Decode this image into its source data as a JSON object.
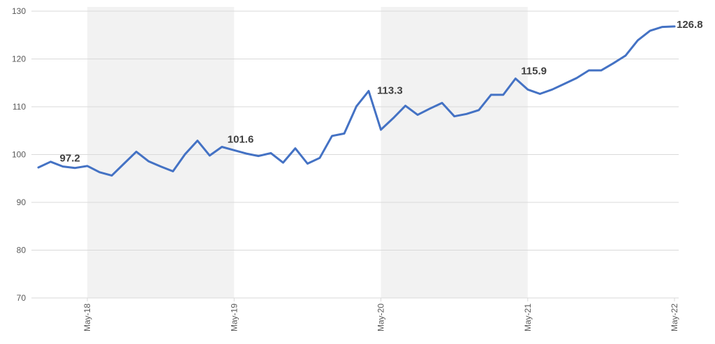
{
  "chart_data": {
    "type": "line",
    "title": "",
    "xlabel": "",
    "ylabel": "",
    "ylim": [
      70,
      130
    ],
    "yticks": [
      70,
      80,
      90,
      100,
      110,
      120,
      130
    ],
    "grid": true,
    "legend": "none",
    "line_color": "#4472C4",
    "band_color": "#F2F2F2",
    "x_tick_labels": [
      "May-18",
      "May-19",
      "May-20",
      "May-21",
      "May-22"
    ],
    "shaded_periods": [
      {
        "from": "May-18",
        "to": "May-19"
      },
      {
        "from": "May-20",
        "to": "May-21"
      }
    ],
    "series": [
      {
        "x": [
          "Jan-18",
          "Feb-18",
          "Mar-18",
          "Apr-18",
          "May-18",
          "Jun-18",
          "Jul-18",
          "Aug-18",
          "Sep-18",
          "Oct-18",
          "Nov-18",
          "Dec-18",
          "Jan-19",
          "Feb-19",
          "Mar-19",
          "Apr-19",
          "May-19",
          "Jun-19",
          "Jul-19",
          "Aug-19",
          "Sep-19",
          "Oct-19",
          "Nov-19",
          "Dec-19",
          "Jan-20",
          "Feb-20",
          "Mar-20",
          "Apr-20",
          "May-20",
          "Jun-20",
          "Jul-20",
          "Aug-20",
          "Sep-20",
          "Oct-20",
          "Nov-20",
          "Dec-20",
          "Jan-21",
          "Feb-21",
          "Mar-21",
          "Apr-21",
          "May-21",
          "Jun-21",
          "Jul-21",
          "Aug-21",
          "Sep-21",
          "Oct-21",
          "Nov-21",
          "Dec-21",
          "Jan-22",
          "Feb-22",
          "Mar-22",
          "Apr-22",
          "May-22"
        ],
        "values": [
          97.3,
          98.5,
          97.5,
          97.2,
          97.6,
          96.3,
          95.6,
          98.1,
          100.6,
          98.6,
          97.5,
          96.5,
          100.1,
          102.9,
          99.8,
          101.6,
          100.9,
          100.2,
          99.7,
          100.3,
          98.3,
          101.3,
          98.1,
          99.3,
          103.9,
          104.4,
          110.1,
          113.3,
          105.2,
          107.6,
          110.2,
          108.3,
          109.6,
          110.8,
          108.0,
          108.5,
          109.3,
          112.5,
          112.5,
          115.9,
          113.6,
          112.7,
          113.6,
          114.8,
          116.0,
          117.6,
          117.6,
          119.1,
          120.7,
          123.9,
          125.9,
          126.7,
          126.8
        ]
      }
    ],
    "data_labels": [
      {
        "x": "Apr-18",
        "text": "97.2"
      },
      {
        "x": "Apr-19",
        "text": "101.6"
      },
      {
        "x": "Apr-20",
        "text": "113.3"
      },
      {
        "x": "Apr-21",
        "text": "115.9"
      },
      {
        "x": "May-22",
        "text": "126.8"
      }
    ]
  }
}
